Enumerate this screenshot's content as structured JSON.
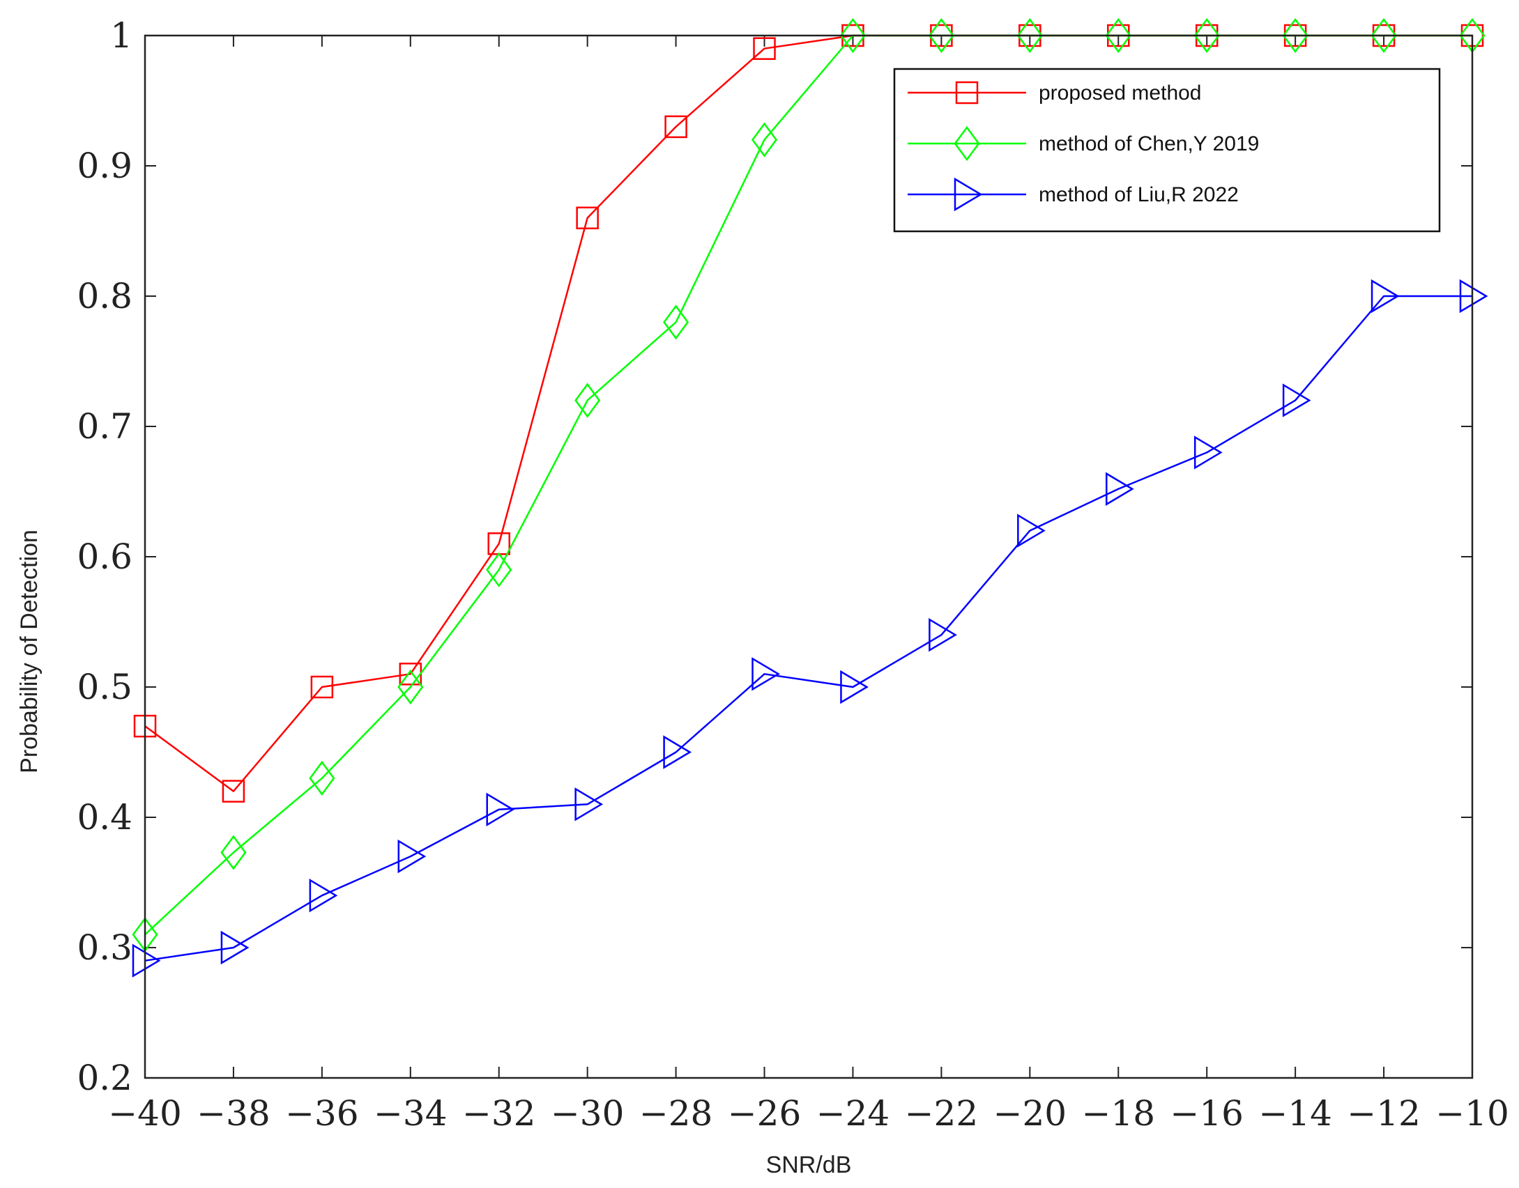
{
  "chart_data": {
    "type": "line",
    "title": "",
    "xlabel": "SNR/dB",
    "ylabel": "Probability of Detection",
    "xlim": [
      -40,
      -10
    ],
    "ylim": [
      0.2,
      1
    ],
    "x_ticks": [
      -40,
      -38,
      -36,
      -34,
      -32,
      -30,
      -28,
      -26,
      -24,
      -22,
      -20,
      -18,
      -16,
      -14,
      -12,
      -10
    ],
    "x_tick_labels": [
      "−40",
      "−38",
      "−36",
      "−34",
      "−32",
      "−30",
      "−28",
      "−26",
      "−24",
      "−22",
      "−20",
      "−18",
      "−16",
      "−14",
      "−12",
      "−10"
    ],
    "y_ticks": [
      0.2,
      0.3,
      0.4,
      0.5,
      0.6,
      0.7,
      0.8,
      0.9,
      1
    ],
    "y_tick_labels": [
      "0.2",
      "0.3",
      "0.4",
      "0.5",
      "0.6",
      "0.7",
      "0.8",
      "0.9",
      "1"
    ],
    "grid": false,
    "legend_position": "top-right",
    "x": [
      -40,
      -38,
      -36,
      -34,
      -32,
      -30,
      -28,
      -26,
      -24,
      -22,
      -20,
      -18,
      -16,
      -14,
      -12,
      -10
    ],
    "series": [
      {
        "name": "proposed method",
        "color": "#ff0000",
        "marker": "square",
        "values": [
          0.47,
          0.42,
          0.5,
          0.51,
          0.61,
          0.86,
          0.93,
          0.99,
          1.0,
          1.0,
          1.0,
          1.0,
          1.0,
          1.0,
          1.0,
          1.0
        ]
      },
      {
        "name": "method of Chen,Y 2019",
        "color": "#00ff00",
        "marker": "diamond",
        "values": [
          0.31,
          0.373,
          0.43,
          0.5,
          0.59,
          0.72,
          0.78,
          0.92,
          1.0,
          1.0,
          1.0,
          1.0,
          1.0,
          1.0,
          1.0,
          1.0
        ]
      },
      {
        "name": "method of Liu,R 2022",
        "color": "#0000ff",
        "marker": "triangle-right",
        "values": [
          0.29,
          0.3,
          0.34,
          0.37,
          0.406,
          0.41,
          0.45,
          0.51,
          0.5,
          0.54,
          0.62,
          0.652,
          0.68,
          0.72,
          0.8,
          0.8
        ]
      }
    ]
  }
}
